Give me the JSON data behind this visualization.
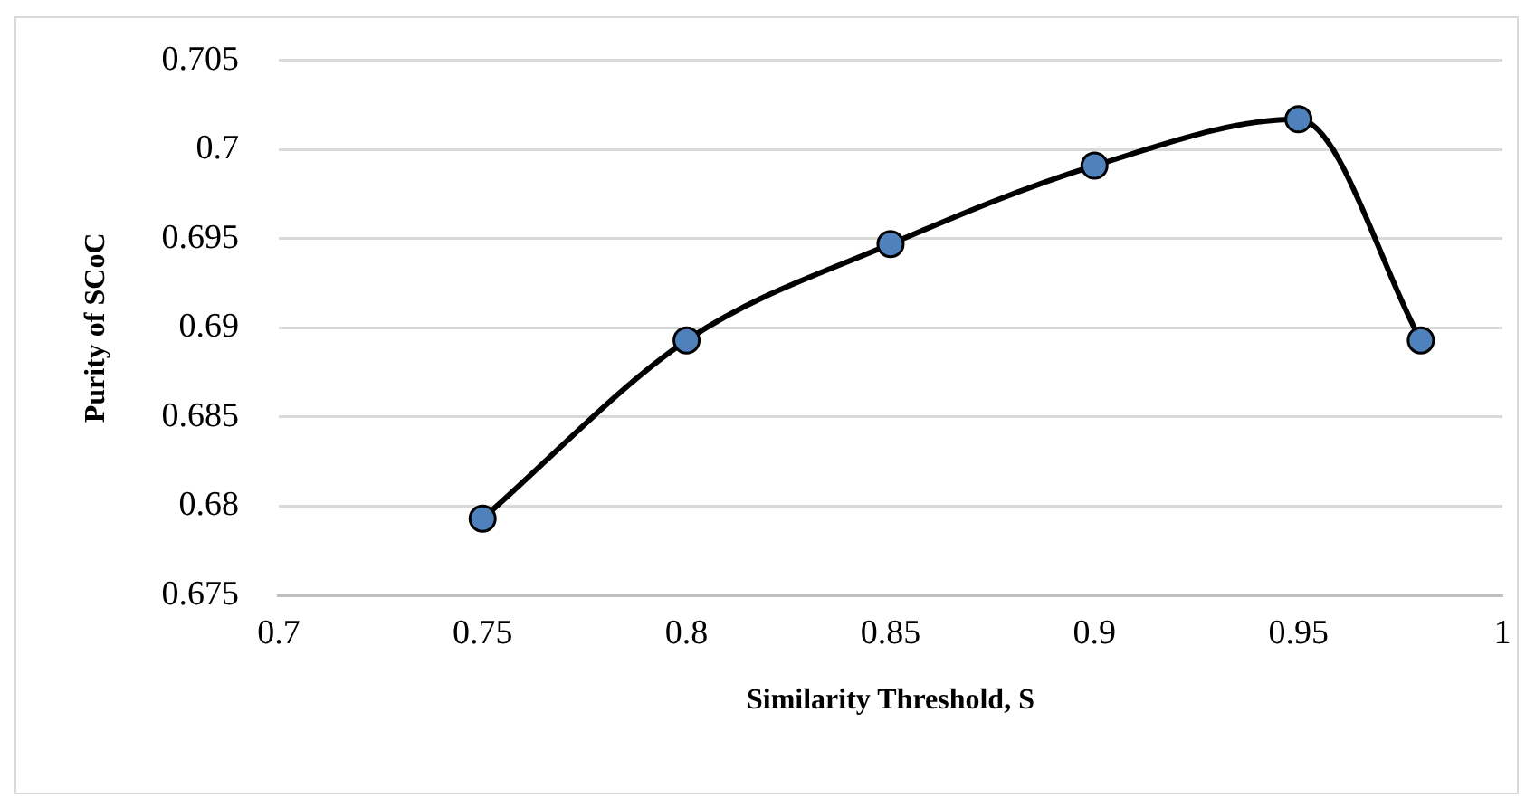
{
  "chart_data": {
    "type": "line",
    "xlabel": "Similarity Threshold, S",
    "ylabel": "Purity of SCoC",
    "x": [
      0.75,
      0.8,
      0.85,
      0.9,
      0.95,
      0.98
    ],
    "series": [
      {
        "color": "#000000",
        "values": [
          0.6793,
          0.6893,
          0.6947,
          0.6991,
          0.7017,
          0.6893
        ]
      }
    ],
    "xlim": [
      0.7,
      1
    ],
    "xticks": [
      0.7,
      0.75,
      0.8,
      0.85,
      0.9,
      0.95,
      1
    ],
    "ylim": [
      0.675,
      0.705
    ],
    "yticks": [
      0.675,
      0.68,
      0.685,
      0.69,
      0.695,
      0.7,
      0.705
    ],
    "grid": "y",
    "legend": false,
    "marker": "circle",
    "line_style": "solid"
  }
}
